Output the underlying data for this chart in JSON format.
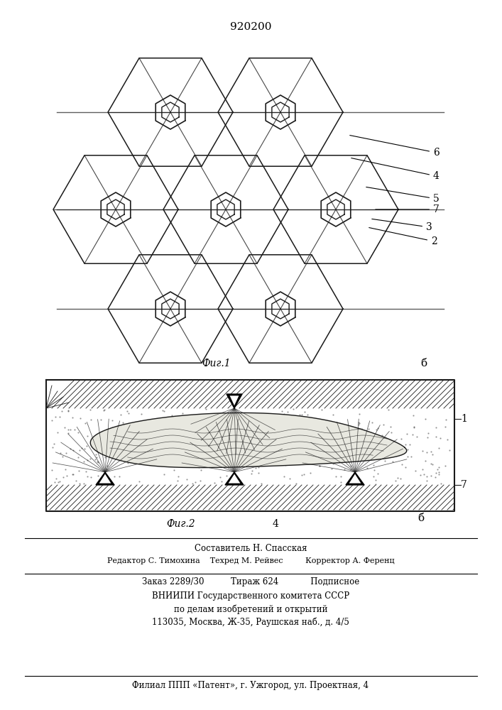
{
  "title": "920200",
  "fig1_label": "Фиг.1",
  "fig2_label": "Фиг.2",
  "label_6": "6",
  "label_4": "4",
  "label_5": "5",
  "label_2": "2",
  "label_3": "3",
  "label_7": "7",
  "label_1": "1",
  "label_b": "б",
  "footer_line1": "Составитель Н. Спасская",
  "footer_line2": "Редактор С. Тимохина    Техред М. Рейвес         Корректор А. Ференц",
  "footer_line3": "Заказ 2289/30          Тираж 624            Подписное",
  "footer_line4": "ВНИИПИ Государственного комитета СССР",
  "footer_line5": "по делам изобретений и открытий",
  "footer_line6": "113035, Москва, Ж-35, Раушская наб., д. 4/5",
  "footer_line7": "Филиал ППП «Патент», г. Ужгород, ул. Проектная, 4",
  "line_color": "#1a1a1a"
}
